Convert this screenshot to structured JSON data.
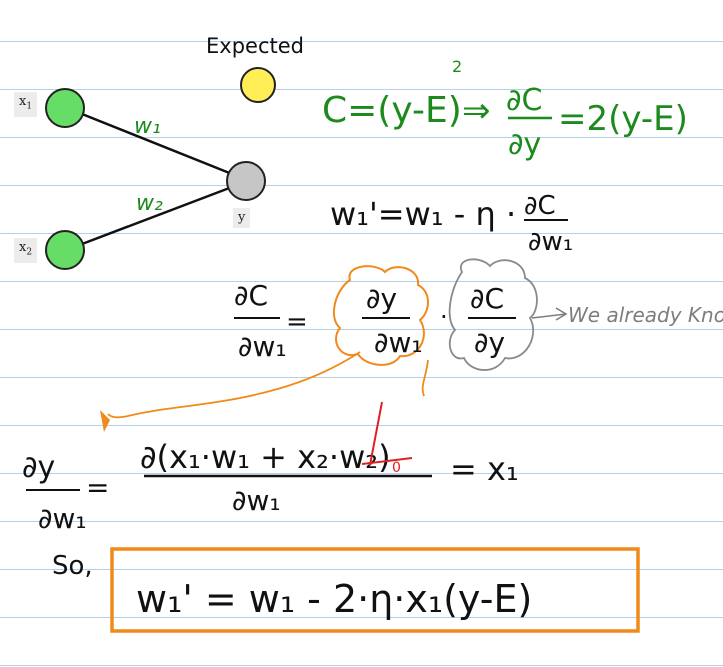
{
  "network": {
    "expected_label": "Expected",
    "nodes": {
      "x1": "x",
      "x1_sub": "1",
      "x2": "x",
      "x2_sub": "2",
      "y": "y"
    },
    "weights": {
      "w1": "w₁",
      "w2": "w₂"
    },
    "colors": {
      "input_node": "#66dd66",
      "output_node": "#c6c6c6",
      "expected_node": "#ffee55",
      "ink_green": "#1c8a1c",
      "ink_black": "#111111",
      "ink_orange": "#f08a1a",
      "ink_red": "#e02020",
      "ink_gray": "#7d7d7d"
    }
  },
  "notes": {
    "cost": "C=(y-E)² ⇒ ∂C/∂y = 2(y-E)",
    "update_rule": "w₁' = w₁ - η · ∂C/∂w₁",
    "chain_rule": "∂C/∂w₁ = ∂y/∂w₁ · ∂C/∂y",
    "already_known": "We already Know it",
    "derivative": "∂y/∂w₁ = ∂(x₁·w₁ + x₂·w₂)/∂w₁ = x₁",
    "so_label": "So,",
    "result": "w₁' = w₁ - 2·η·x₁(y-E)"
  }
}
